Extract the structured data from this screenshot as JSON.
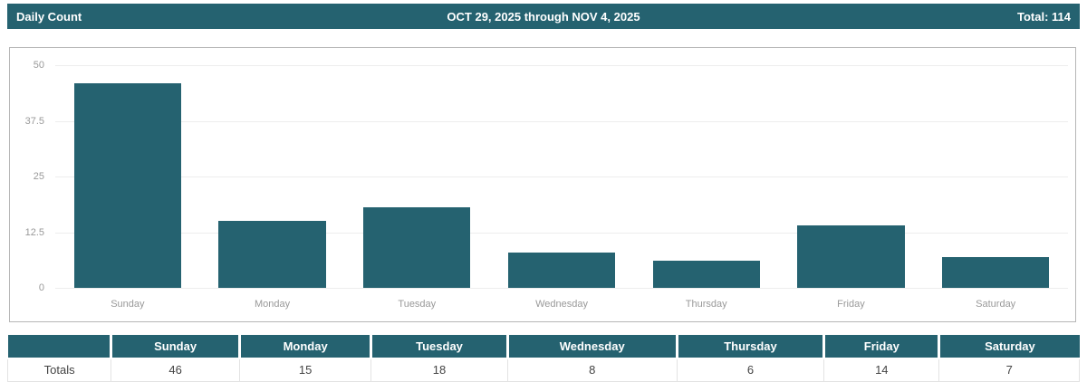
{
  "colors": {
    "accent_teal": "#256270",
    "grid_line": "#ededed",
    "axis_text": "#999999",
    "panel_border": "#b7b7b7"
  },
  "header": {
    "title": "Daily Count",
    "date_range": "OCT 29, 2025 through NOV 4, 2025",
    "total_label": "Total: 114"
  },
  "chart_data": {
    "type": "bar",
    "title": "Daily Count",
    "categories": [
      "Sunday",
      "Monday",
      "Tuesday",
      "Wednesday",
      "Thursday",
      "Friday",
      "Saturday"
    ],
    "values": [
      46,
      15,
      18,
      8,
      6,
      14,
      7
    ],
    "total": 114,
    "xlabel": "",
    "ylabel": "",
    "ylim": [
      0,
      50
    ],
    "yticks": [
      "50",
      "37.5",
      "25",
      "12.5",
      "0"
    ],
    "grid": "horizontal",
    "legend": "none",
    "bar_color": "#256270"
  },
  "table": {
    "corner_label": "",
    "row_label": "Totals",
    "columns": [
      "Sunday",
      "Monday",
      "Tuesday",
      "Wednesday",
      "Thursday",
      "Friday",
      "Saturday"
    ],
    "values": [
      "46",
      "15",
      "18",
      "8",
      "6",
      "14",
      "7"
    ]
  }
}
